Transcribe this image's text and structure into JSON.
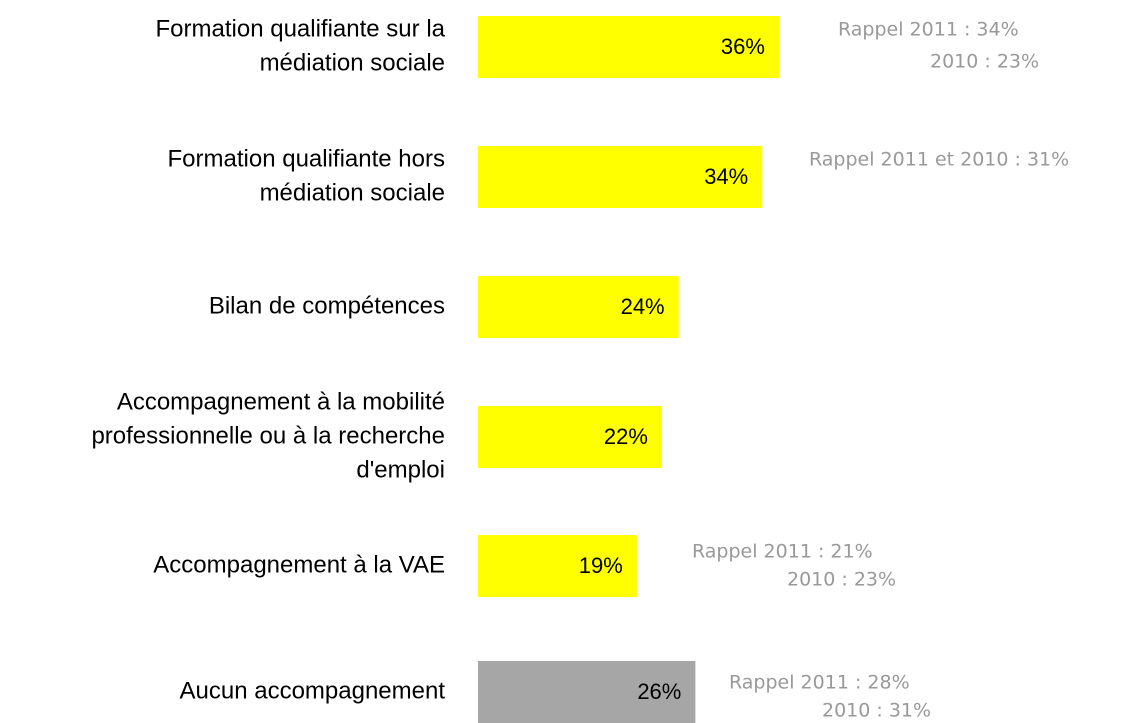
{
  "chart_data": {
    "type": "bar",
    "orientation": "horizontal",
    "categories": [
      [
        "Formation qualifiante sur la",
        "médiation sociale"
      ],
      [
        "Formation qualifiante hors",
        "médiation sociale"
      ],
      [
        "Bilan de compétences"
      ],
      [
        "Accompagnement à la mobilité",
        "professionnelle ou à la recherche",
        "d'emploi"
      ],
      [
        "Accompagnement à la VAE"
      ],
      [
        "Aucun accompagnement"
      ]
    ],
    "values": [
      36,
      34,
      24,
      22,
      19,
      26
    ],
    "value_labels": [
      "36%",
      "34%",
      "24%",
      "22%",
      "19%",
      "26%"
    ],
    "colors": [
      "#ffff00",
      "#ffff00",
      "#ffff00",
      "#ffff00",
      "#ffff00",
      "#a6a6a6"
    ],
    "annotations": [
      [
        "Rappel 2011 : 34%",
        "2010 : 23%"
      ],
      [
        "Rappel 2011 et 2010 : 31%"
      ],
      null,
      null,
      [
        "Rappel 2011 : 21%",
        "2010 : 23%"
      ],
      [
        "Rappel 2011 : 28%",
        "2010 : 31%"
      ]
    ]
  }
}
